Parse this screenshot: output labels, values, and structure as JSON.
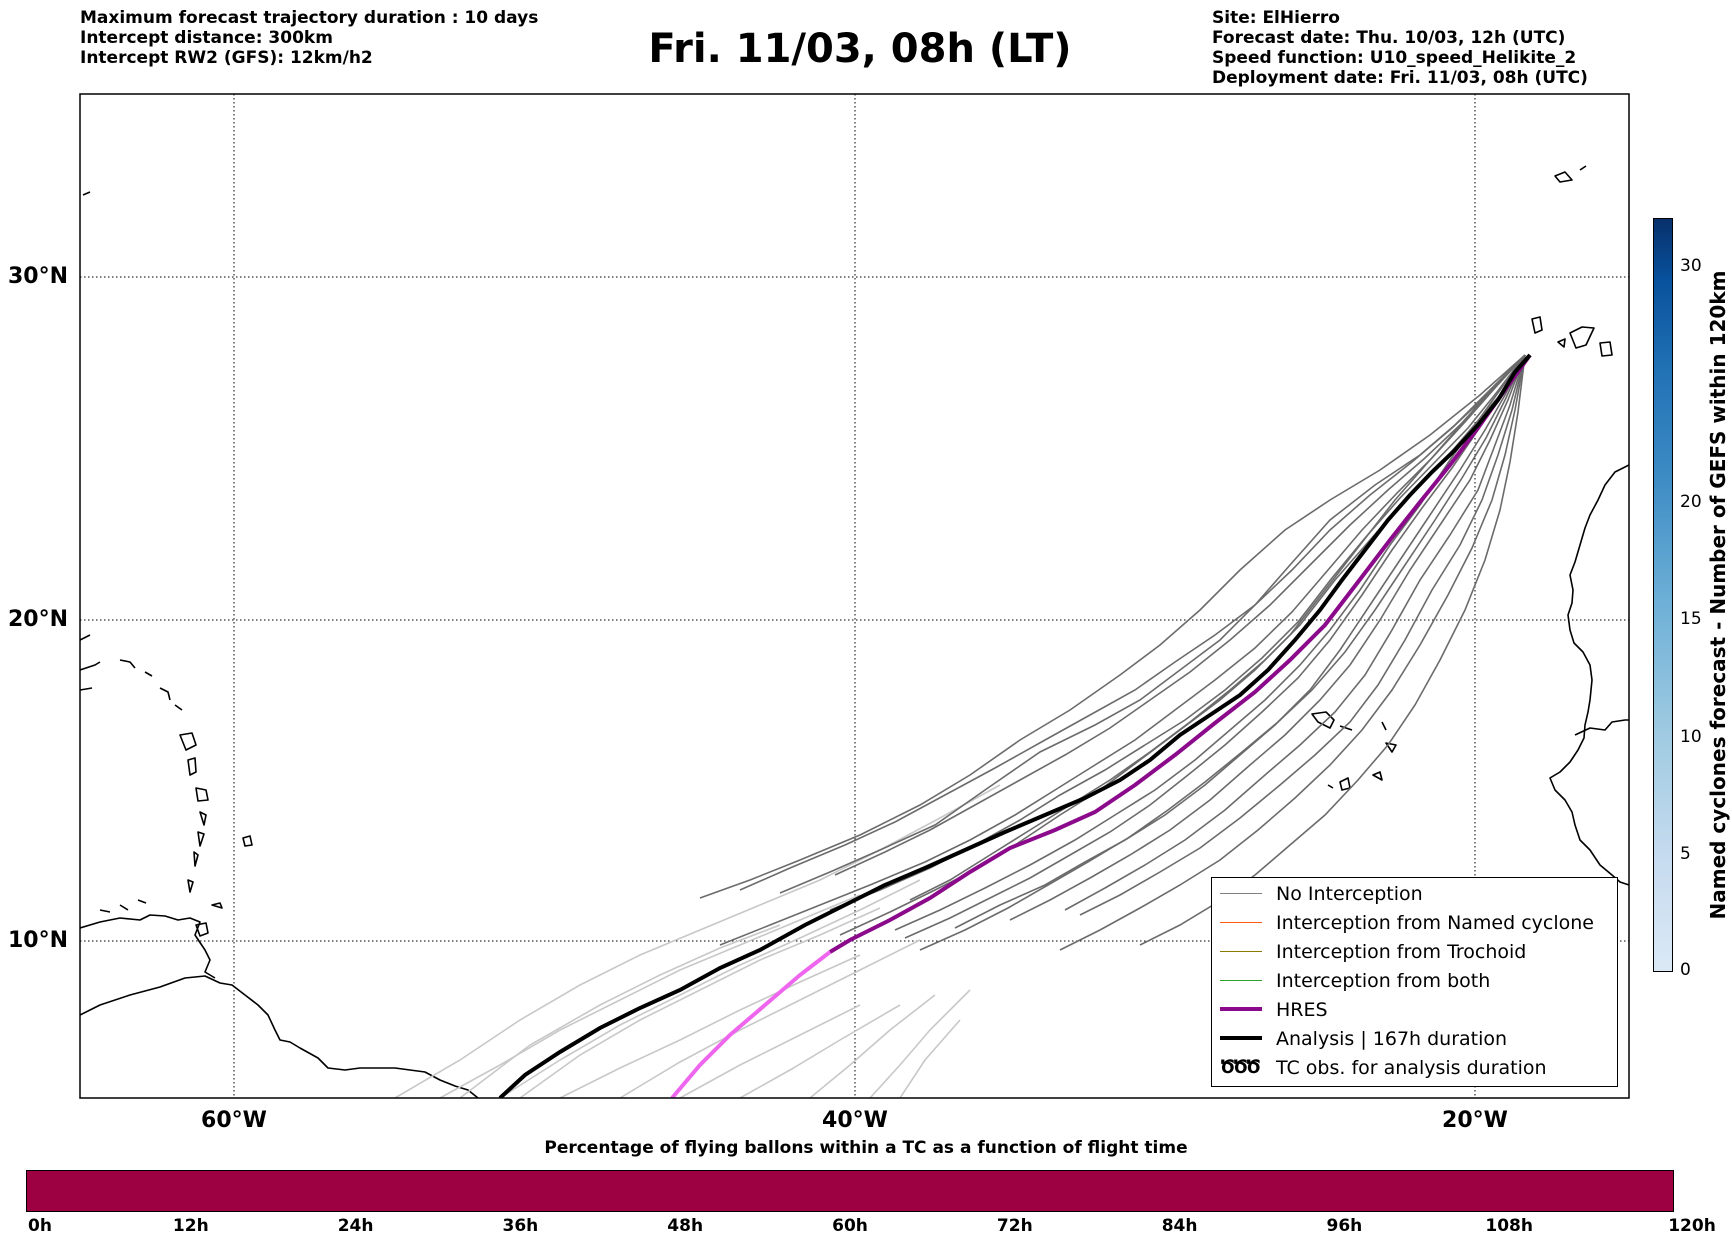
{
  "header_left": [
    "Maximum forecast trajectory duration : 10 days",
    "Intercept distance: 300km",
    "Intercept RW2 (GFS):  12km/h2"
  ],
  "title": "Fri. 11/03, 08h (LT)",
  "header_right": [
    "Site: ElHierro",
    "Forecast date: Thu. 10/03, 12h (UTC)",
    "Speed function: U10_speed_Helikite_2",
    "Deployment date: Fri. 11/03, 08h (UTC)"
  ],
  "map": {
    "lon_range": [
      -65,
      15
    ],
    "lat_range": [
      5.4,
      34.8
    ],
    "lat_labels": [
      {
        "lat": 30,
        "text": "30°N"
      },
      {
        "lat": 20,
        "text": "20°N"
      },
      {
        "lat": 10,
        "text": "10°N"
      }
    ],
    "lon_labels": [
      {
        "lon": -60,
        "text": "60°W"
      },
      {
        "lon": -40,
        "text": "40°W"
      },
      {
        "lon": -20,
        "text": "20°W"
      }
    ]
  },
  "legend": [
    {
      "label": "No Interception",
      "color": "#808080"
    },
    {
      "label": "Interception from Named cyclone",
      "color": "#ff5a14"
    },
    {
      "label": "Interception from Trochoid",
      "color": "#8a7a00"
    },
    {
      "label": "Interception from both",
      "color": "#2ca02c"
    },
    {
      "label": "HRES",
      "color": "#8b0a8b"
    },
    {
      "label": "Analysis | 167h duration",
      "color": "#000000"
    },
    {
      "label": "TC obs. for analysis duration",
      "glyph": "ԾԾԾ"
    }
  ],
  "colorbar_right": {
    "label": "Named cyclones forecast - Number of GEFS within 120km",
    "ticks": [
      "0",
      "5",
      "10",
      "15",
      "20",
      "30"
    ]
  },
  "colorbar_bottom": {
    "title": "Percentage of flying ballons within a TC as a function of flight time",
    "ticks": [
      "0h",
      "12h",
      "24h",
      "36h",
      "48h",
      "60h",
      "72h",
      "84h",
      "96h",
      "108h",
      "120h"
    ]
  }
}
